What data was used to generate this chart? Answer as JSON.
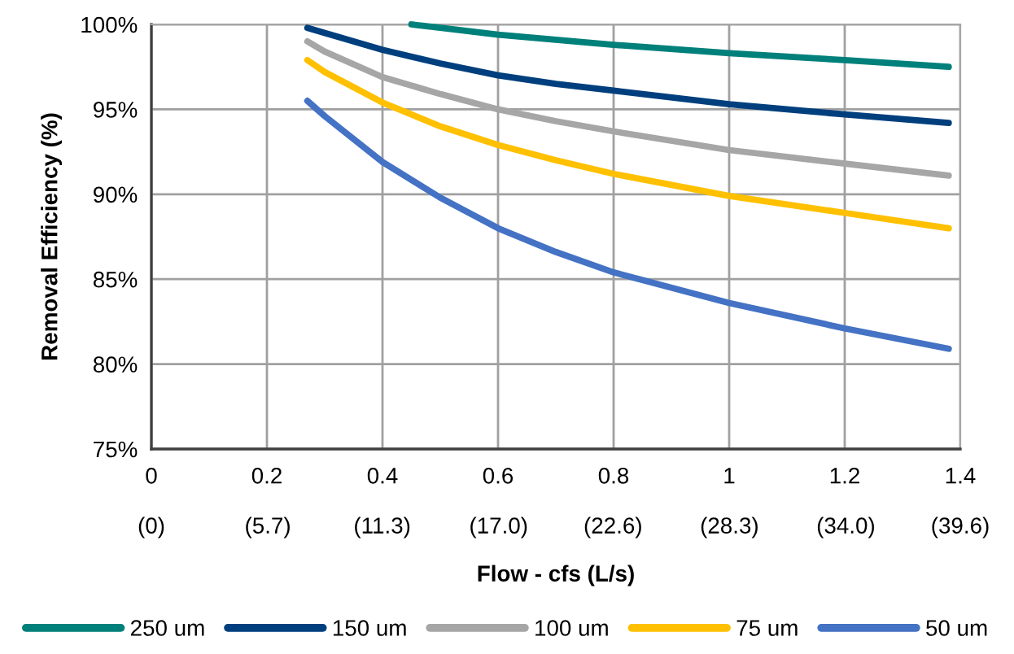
{
  "chart_data": {
    "type": "line",
    "xlabel": "Flow - cfs (L/s)",
    "ylabel": "Removal Efficiency (%)",
    "xlim": [
      0,
      1.4
    ],
    "ylim": [
      75,
      100
    ],
    "xticks": [
      0,
      0.2,
      0.4,
      0.6,
      0.8,
      1,
      1.2,
      1.4
    ],
    "x2lim": [
      0,
      39.6
    ],
    "x2ticks": [
      {
        "value": 0,
        "label": "(0)"
      },
      {
        "value": 5.7,
        "label": "(5.7)"
      },
      {
        "value": 11.3,
        "label": "(11.3)"
      },
      {
        "value": 17.0,
        "label": "(17.0)"
      },
      {
        "value": 22.6,
        "label": "(22.6)"
      },
      {
        "value": 28.3,
        "label": "(28.3)"
      },
      {
        "value": 34.0,
        "label": "(34.0)"
      },
      {
        "value": 39.6,
        "label": "(39.6)"
      }
    ],
    "yticks": [
      {
        "value": 75,
        "label": "75%"
      },
      {
        "value": 80,
        "label": "80%"
      },
      {
        "value": 85,
        "label": "85%"
      },
      {
        "value": 90,
        "label": "90%"
      },
      {
        "value": 95,
        "label": "95%"
      },
      {
        "value": 100,
        "label": "100%"
      }
    ],
    "grid": true,
    "legend": "bottom",
    "marker": "none",
    "line_style": "solid",
    "series": [
      {
        "name": "250 um",
        "color": "#00807a",
        "x": [
          0.45,
          0.5,
          0.6,
          0.7,
          0.8,
          1.0,
          1.2,
          1.38
        ],
        "values": [
          100,
          99.8,
          99.4,
          99.1,
          98.8,
          98.3,
          97.9,
          97.5
        ]
      },
      {
        "name": "150 um",
        "color": "#003f7d",
        "x": [
          0.27,
          0.3,
          0.4,
          0.5,
          0.6,
          0.7,
          0.8,
          1.0,
          1.2,
          1.38
        ],
        "values": [
          99.8,
          99.5,
          98.5,
          97.7,
          97.0,
          96.5,
          96.1,
          95.3,
          94.7,
          94.2
        ]
      },
      {
        "name": "100 um",
        "color": "#a6a6a6",
        "x": [
          0.27,
          0.3,
          0.4,
          0.5,
          0.6,
          0.7,
          0.8,
          1.0,
          1.2,
          1.38
        ],
        "values": [
          99.0,
          98.4,
          96.9,
          95.9,
          95.0,
          94.3,
          93.7,
          92.6,
          91.8,
          91.1
        ]
      },
      {
        "name": "75 um",
        "color": "#ffc000",
        "x": [
          0.27,
          0.3,
          0.4,
          0.5,
          0.6,
          0.7,
          0.8,
          1.0,
          1.2,
          1.38
        ],
        "values": [
          97.9,
          97.2,
          95.4,
          94.0,
          92.9,
          92.0,
          91.2,
          89.9,
          88.9,
          88.0
        ]
      },
      {
        "name": "50 um",
        "color": "#4472c4",
        "x": [
          0.27,
          0.3,
          0.4,
          0.5,
          0.6,
          0.7,
          0.8,
          1.0,
          1.2,
          1.38
        ],
        "values": [
          95.5,
          94.6,
          91.9,
          89.8,
          88.0,
          86.6,
          85.4,
          83.6,
          82.1,
          80.9
        ]
      }
    ]
  }
}
